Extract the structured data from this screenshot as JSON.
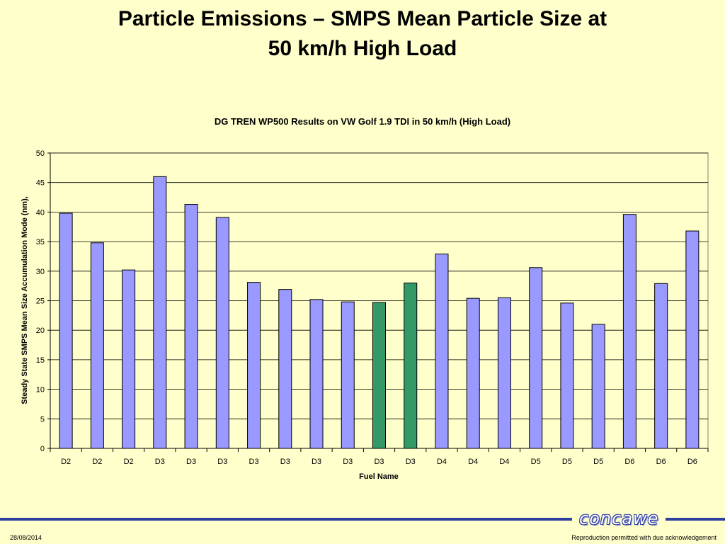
{
  "slide": {
    "title_line1": "Particle Emissions – SMPS Mean Particle Size at",
    "title_line2": "50 km/h High Load",
    "date": "28/08/2014",
    "note": "Reproduction permitted with due acknowledgement",
    "logo": "concawe"
  },
  "colors": {
    "bar_default": "#9999ff",
    "bar_highlight": "#339966",
    "plot_bg": "#ffffcc",
    "footer_band": "#2f3fa0"
  },
  "chart_data": {
    "type": "bar",
    "title": "DG TREN WP500 Results on VW Golf 1.9 TDI in 50 km/h (High Load)",
    "xlabel": "Fuel Name",
    "ylabel": "Steady State SMPS Mean Size Accumulation Mode (nm),",
    "ylim": [
      0,
      50
    ],
    "yticks": [
      0,
      5,
      10,
      15,
      20,
      25,
      30,
      35,
      40,
      45,
      50
    ],
    "grid": true,
    "legend": "none",
    "categories": [
      "D2",
      "D2",
      "D2",
      "D3",
      "D3",
      "D3",
      "D3",
      "D3",
      "D3",
      "D3",
      "D3",
      "D3",
      "D4",
      "D4",
      "D4",
      "D5",
      "D5",
      "D5",
      "D6",
      "D6",
      "D6"
    ],
    "values": [
      39.8,
      34.8,
      30.2,
      46.0,
      41.3,
      39.1,
      28.1,
      26.9,
      25.2,
      24.8,
      24.7,
      28.0,
      32.9,
      25.4,
      25.5,
      30.6,
      24.6,
      21.0,
      39.6,
      27.9,
      36.8
    ],
    "highlight": [
      false,
      false,
      false,
      false,
      false,
      false,
      false,
      false,
      false,
      false,
      true,
      true,
      false,
      false,
      false,
      false,
      false,
      false,
      false,
      false,
      false
    ]
  }
}
